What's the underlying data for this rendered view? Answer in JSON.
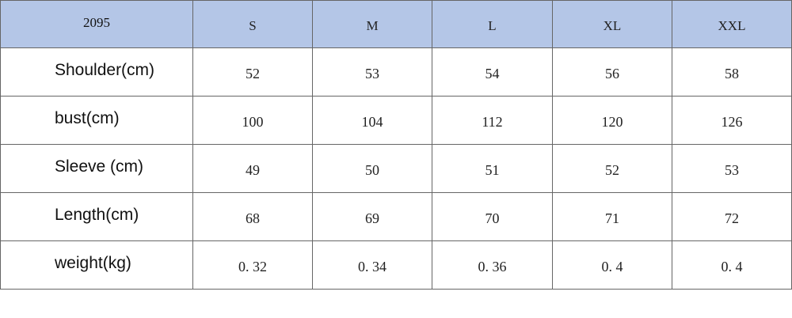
{
  "table": {
    "header": [
      "2095",
      "S",
      "M",
      "L",
      "XL",
      "XXL"
    ],
    "rows": [
      [
        "Shoulder(cm)",
        "52",
        "53",
        "54",
        "56",
        "58"
      ],
      [
        "bust(cm)",
        "100",
        "104",
        "112",
        "120",
        "126"
      ],
      [
        "Sleeve (cm)",
        "49",
        "50",
        "51",
        "52",
        "53"
      ],
      [
        "Length(cm)",
        "68",
        "69",
        "70",
        "71",
        "72"
      ],
      [
        "weight(kg)",
        "0. 32",
        "0. 34",
        "0. 36",
        "0. 4",
        "0. 4"
      ]
    ]
  }
}
